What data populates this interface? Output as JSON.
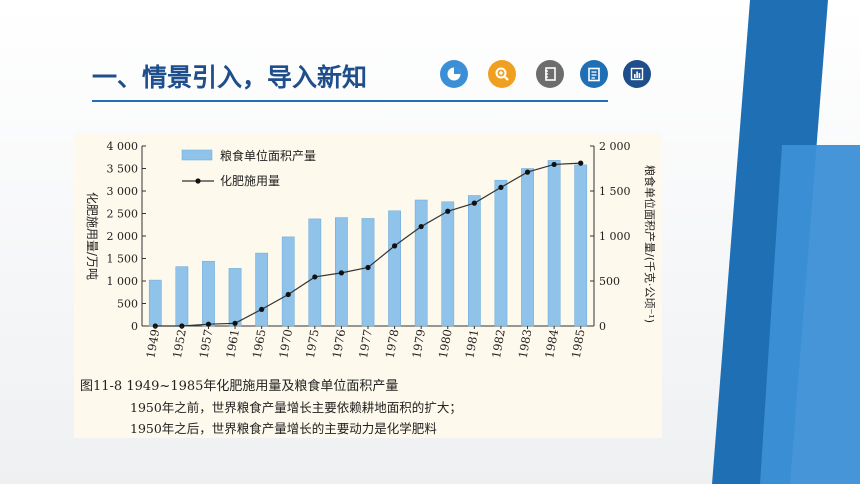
{
  "header": {
    "title": "一、情景引入，导入新知",
    "icons": [
      "pie-chart-icon",
      "zoom-in-icon",
      "notebook-icon",
      "notepad-icon",
      "bar-chart-icon"
    ]
  },
  "colors": {
    "title": "#1f4e8c",
    "stripe_dark": "#1f6fb5",
    "stripe_light": "#3b8fd6",
    "bar": "#8fc3ea",
    "line": "#333333"
  },
  "caption": {
    "line1": "图11-8 1949~1985年化肥施用量及粮食单位面积产量",
    "line2": "1950年之前，世界粮食产量增长主要依赖耕地面积的扩大；",
    "line3": "1950年之后，世界粮食产量增长的主要动力是化学肥料"
  },
  "chart_data": {
    "type": "bar",
    "categories": [
      "1949",
      "1952",
      "1957",
      "1961",
      "1965",
      "1970",
      "1975",
      "1976",
      "1977",
      "1978",
      "1979",
      "1980",
      "1981",
      "1982",
      "1983",
      "1984",
      "1985"
    ],
    "series": [
      {
        "name": "粮食单位面积产量",
        "type": "bar",
        "axis": "right",
        "values": [
          510,
          660,
          720,
          640,
          810,
          990,
          1190,
          1205,
          1195,
          1280,
          1400,
          1380,
          1450,
          1620,
          1750,
          1840,
          1790
        ]
      },
      {
        "name": "化肥施用量",
        "type": "line",
        "axis": "left",
        "values": [
          0,
          0,
          40,
          60,
          370,
          700,
          1090,
          1180,
          1300,
          1780,
          2210,
          2550,
          2730,
          3080,
          3420,
          3590,
          3620
        ]
      }
    ],
    "ylabel": "化肥施用量/万吨",
    "y2label": "粮食单位面积产量/(千克·公顷⁻¹)",
    "ylim": [
      0,
      4000
    ],
    "y2lim": [
      0,
      2000
    ],
    "yticks": [
      "0",
      "500",
      "1 000",
      "1 500",
      "2 000",
      "2 500",
      "3 000",
      "3 500",
      "4 000"
    ],
    "y2ticks": [
      "0",
      "500",
      "1 000",
      "1 500",
      "2 000"
    ],
    "legend": "top-left",
    "grid": false
  }
}
